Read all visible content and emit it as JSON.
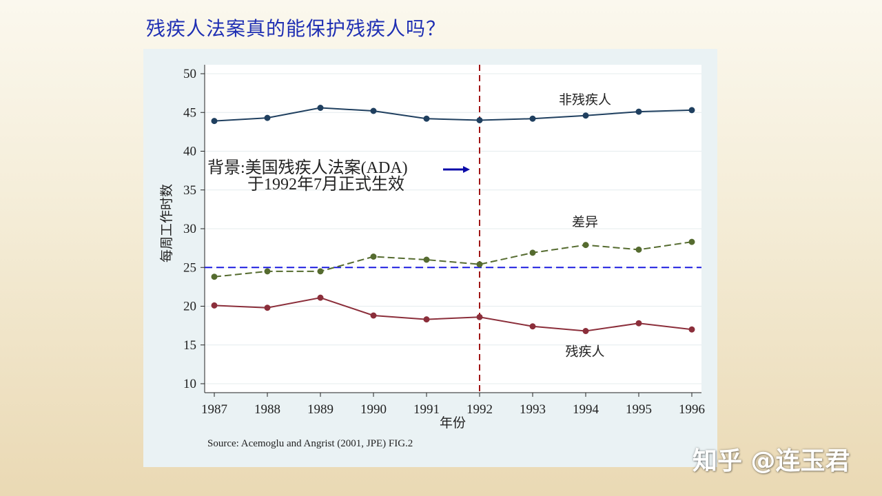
{
  "slide": {
    "title": "残疾人法案真的能保护残疾人吗？",
    "watermark": "知乎 @连玉君"
  },
  "chart_data": {
    "type": "line",
    "xlabel": "年份",
    "ylabel": "每周工作时数",
    "x": [
      1987,
      1988,
      1989,
      1990,
      1991,
      1992,
      1993,
      1994,
      1995,
      1996
    ],
    "ylim": [
      10,
      50
    ],
    "yticks": [
      10,
      15,
      20,
      25,
      30,
      35,
      40,
      45,
      50
    ],
    "grid": true,
    "series": [
      {
        "name": "非残疾人",
        "color": "#1f3f5f",
        "dash": "solid",
        "values": [
          43.9,
          44.3,
          45.6,
          45.2,
          44.2,
          44.0,
          44.2,
          44.6,
          45.1,
          45.3
        ]
      },
      {
        "name": "差异",
        "color": "#556b2f",
        "dash": "dashed",
        "values": [
          23.8,
          24.5,
          24.5,
          26.4,
          26.0,
          25.4,
          26.9,
          27.9,
          27.3,
          28.3
        ]
      },
      {
        "name": "残疾人",
        "color": "#8b2e3a",
        "dash": "solid",
        "values": [
          20.1,
          19.8,
          21.1,
          18.8,
          18.3,
          18.6,
          17.4,
          16.8,
          17.8,
          17.0
        ]
      }
    ],
    "reference_lines": [
      {
        "type": "vertical",
        "x": 1992,
        "color": "#a01515"
      },
      {
        "type": "horizontal",
        "y": 25,
        "color": "#1a1adf"
      }
    ],
    "annotation": {
      "line1": "背景:美国残疾人法案(ADA)",
      "line2": "于1992年7月正式生效"
    },
    "source": "Source: Acemoglu and Angrist (2001, JPE) FIG.2"
  }
}
